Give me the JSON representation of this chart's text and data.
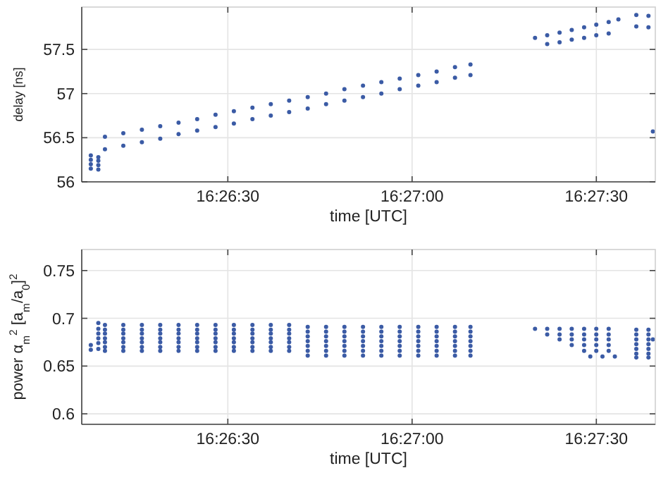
{
  "chart_data": [
    {
      "type": "scatter",
      "xlabel": "time [UTC]",
      "ylabel": "delay [ns]",
      "xlim": [
        16.43506,
        16.461
      ],
      "xticks": [
        {
          "value": 16.441667,
          "label": "16:26:30"
        },
        {
          "value": 16.45,
          "label": "16:27:00"
        },
        {
          "value": 16.458333,
          "label": "16:27:30"
        }
      ],
      "ylim": [
        56,
        57.98
      ],
      "yticks": [
        56,
        56.5,
        57,
        57.5
      ],
      "grid": true,
      "marker": "circle",
      "x": [
        16.43611,
        16.43694,
        16.43778,
        16.43861,
        16.43944,
        16.44028,
        16.44111,
        16.44194,
        16.44278,
        16.44361,
        16.44444,
        16.44528,
        16.44611,
        16.44694,
        16.44778,
        16.44861,
        16.44944,
        16.45028,
        16.45111,
        16.45194,
        16.45264
      ],
      "series": [
        {
          "color": "#3b5ba5",
          "values": [
            56.51,
            56.55,
            56.59,
            56.63,
            56.67,
            56.71,
            56.76,
            56.8,
            56.84,
            56.88,
            56.92,
            56.96,
            57.0,
            57.05,
            57.09,
            57.13,
            57.17,
            57.21,
            57.25,
            57.3,
            57.33
          ]
        },
        {
          "color": "#3b5ba5",
          "values": [
            56.37,
            56.41,
            56.45,
            56.49,
            56.54,
            56.58,
            56.62,
            56.66,
            56.71,
            56.75,
            56.79,
            56.83,
            56.88,
            56.92,
            56.96,
            57.0,
            57.05,
            57.09,
            57.13,
            57.18,
            57.21
          ]
        },
        {
          "color": "#3b5ba5",
          "x": [
            16.43547,
            16.43547,
            16.43547,
            16.43547,
            16.43581,
            16.43581,
            16.43581,
            16.43581
          ],
          "values": [
            56.15,
            56.2,
            56.25,
            56.3,
            56.14,
            56.19,
            56.24,
            56.28
          ]
        },
        {
          "color": "#3b5ba5",
          "x": [
            16.45556,
            16.45611,
            16.45667,
            16.45722,
            16.45778,
            16.45833,
            16.45889,
            16.45933
          ],
          "values": [
            57.63,
            57.66,
            57.69,
            57.72,
            57.75,
            57.78,
            57.81,
            57.84
          ]
        },
        {
          "color": "#3b5ba5",
          "x": [
            16.45611,
            16.45667,
            16.45722,
            16.45778,
            16.45833,
            16.45889
          ],
          "values": [
            57.56,
            57.58,
            57.61,
            57.63,
            57.66,
            57.68
          ]
        },
        {
          "color": "#3b5ba5",
          "x": [
            16.46014,
            16.46014,
            16.46069,
            16.46069
          ],
          "values": [
            57.89,
            57.76,
            57.88,
            57.75
          ]
        },
        {
          "color": "#3b5ba5",
          "x": [
            16.46089
          ],
          "values": [
            56.57
          ]
        }
      ]
    },
    {
      "type": "scatter",
      "xlabel": "time [UTC]",
      "ylabel": "power α$_{m}$$^{2}$ [a$_{m}$/a$_{0}$]$^{2}$",
      "xlim": [
        16.43506,
        16.461
      ],
      "xticks": [
        {
          "value": 16.441667,
          "label": "16:26:30"
        },
        {
          "value": 16.45,
          "label": "16:27:00"
        },
        {
          "value": 16.458333,
          "label": "16:27:30"
        }
      ],
      "ylim": [
        0.589,
        0.772
      ],
      "yticks": [
        0.6,
        0.65,
        0.7,
        0.75
      ],
      "grid": true,
      "marker": "circle",
      "x": [
        16.43611,
        16.43694,
        16.43778,
        16.43861,
        16.43944,
        16.44028,
        16.44111,
        16.44194,
        16.44278,
        16.44361,
        16.44444,
        16.44528,
        16.44611,
        16.44694,
        16.44778,
        16.44861,
        16.44944,
        16.45028,
        16.45111,
        16.45194,
        16.45264
      ],
      "series": [
        {
          "color": "#3b5ba5",
          "values": [
            0.693,
            0.693,
            0.693,
            0.693,
            0.693,
            0.693,
            0.693,
            0.693,
            0.693,
            0.693,
            0.693,
            0.691,
            0.691,
            0.691,
            0.691,
            0.691,
            0.691,
            0.691,
            0.691,
            0.691,
            0.691
          ]
        },
        {
          "color": "#3b5ba5",
          "values": [
            0.688,
            0.688,
            0.688,
            0.688,
            0.688,
            0.688,
            0.688,
            0.688,
            0.688,
            0.688,
            0.688,
            0.686,
            0.686,
            0.686,
            0.686,
            0.686,
            0.686,
            0.686,
            0.686,
            0.686,
            0.686
          ]
        },
        {
          "color": "#3b5ba5",
          "values": [
            0.684,
            0.684,
            0.684,
            0.684,
            0.684,
            0.684,
            0.684,
            0.684,
            0.684,
            0.684,
            0.684,
            0.681,
            0.681,
            0.681,
            0.681,
            0.681,
            0.681,
            0.681,
            0.681,
            0.681,
            0.681
          ]
        },
        {
          "color": "#3b5ba5",
          "values": [
            0.679,
            0.679,
            0.679,
            0.679,
            0.679,
            0.679,
            0.679,
            0.679,
            0.679,
            0.679,
            0.679,
            0.676,
            0.676,
            0.676,
            0.676,
            0.676,
            0.676,
            0.676,
            0.676,
            0.676,
            0.676
          ]
        },
        {
          "color": "#3b5ba5",
          "values": [
            0.675,
            0.675,
            0.675,
            0.675,
            0.675,
            0.675,
            0.675,
            0.675,
            0.675,
            0.675,
            0.675,
            0.671,
            0.671,
            0.671,
            0.671,
            0.671,
            0.671,
            0.671,
            0.671,
            0.671,
            0.671
          ]
        },
        {
          "color": "#3b5ba5",
          "values": [
            0.67,
            0.67,
            0.67,
            0.67,
            0.67,
            0.67,
            0.67,
            0.67,
            0.67,
            0.67,
            0.67,
            0.666,
            0.666,
            0.666,
            0.666,
            0.666,
            0.666,
            0.666,
            0.666,
            0.666,
            0.666
          ]
        },
        {
          "color": "#3b5ba5",
          "values": [
            0.666,
            0.666,
            0.666,
            0.666,
            0.666,
            0.666,
            0.666,
            0.666,
            0.666,
            0.666,
            0.666,
            0.661,
            0.661,
            0.661,
            0.661,
            0.661,
            0.661,
            0.661,
            0.661,
            0.661,
            0.661
          ]
        },
        {
          "color": "#3b5ba5",
          "x": [
            16.43547,
            16.43547,
            16.43581,
            16.43581,
            16.43581,
            16.43581,
            16.43581,
            16.43581
          ],
          "values": [
            0.672,
            0.667,
            0.695,
            0.689,
            0.684,
            0.679,
            0.674,
            0.668
          ]
        },
        {
          "color": "#3b5ba5",
          "x": [
            16.45556,
            16.45611,
            16.45667,
            16.45722,
            16.45778,
            16.45833,
            16.45889
          ],
          "values": [
            0.689,
            0.689,
            0.689,
            0.689,
            0.689,
            0.689,
            0.689
          ]
        },
        {
          "color": "#3b5ba5",
          "x": [
            16.45611,
            16.45667,
            16.45722,
            16.45778,
            16.45833,
            16.45889
          ],
          "values": [
            0.683,
            0.683,
            0.683,
            0.683,
            0.683,
            0.683
          ]
        },
        {
          "color": "#3b5ba5",
          "x": [
            16.45667,
            16.45722,
            16.45778,
            16.45833,
            16.45889
          ],
          "values": [
            0.678,
            0.678,
            0.678,
            0.678,
            0.678
          ]
        },
        {
          "color": "#3b5ba5",
          "x": [
            16.45722,
            16.45778,
            16.45833,
            16.45889
          ],
          "values": [
            0.672,
            0.672,
            0.672,
            0.672
          ]
        },
        {
          "color": "#3b5ba5",
          "x": [
            16.45778,
            16.45833,
            16.45889
          ],
          "values": [
            0.666,
            0.666,
            0.666
          ]
        },
        {
          "color": "#3b5ba5",
          "x": [
            16.45806,
            16.45861,
            16.45917
          ],
          "values": [
            0.66,
            0.66,
            0.66
          ]
        },
        {
          "color": "#3b5ba5",
          "x": [
            16.46014,
            16.46014,
            16.46014,
            16.46014,
            16.46014,
            16.46014,
            16.46014,
            16.46069,
            16.46069,
            16.46069,
            16.46069,
            16.46069,
            16.46069,
            16.46069
          ],
          "values": [
            0.688,
            0.683,
            0.678,
            0.673,
            0.668,
            0.663,
            0.659,
            0.688,
            0.683,
            0.678,
            0.673,
            0.668,
            0.663,
            0.659
          ]
        },
        {
          "color": "#3b5ba5",
          "x": [
            16.46089
          ],
          "values": [
            0.678
          ]
        }
      ]
    }
  ]
}
